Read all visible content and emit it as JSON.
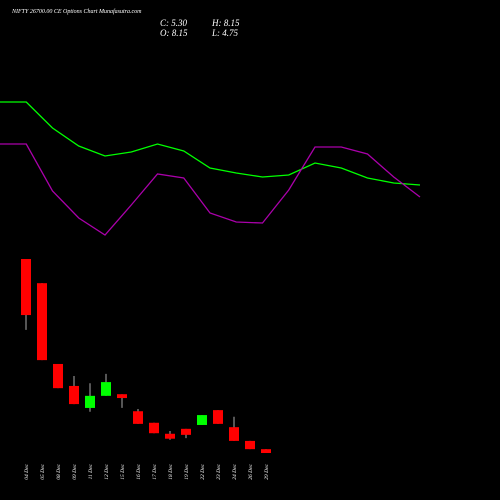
{
  "chart_data": [
    {
      "type": "candlestick",
      "title": "NIFTY 26700.00 CE Options Chart Munafasutra.com",
      "annotations": [
        "C: 5.30",
        "H: 8.15",
        "O: 8.15",
        "L: 4.75"
      ],
      "categories": [
        "04 Dec",
        "05 Dec",
        "08 Dec",
        "09 Dec",
        "11 Dec",
        "12 Dec",
        "15 Dec",
        "16 Dec",
        "17 Dec",
        "18 Dec",
        "19 Dec",
        "22 Dec",
        "23 Dec",
        "24 Dec",
        "26 Dec",
        "29 Dec"
      ],
      "open": [
        40.2,
        35.8,
        21.1,
        17.1,
        13.1,
        15.3,
        15.6,
        12.5,
        10.4,
        8.4,
        9.3,
        10.0,
        12.7,
        9.6,
        7.1,
        5.6
      ],
      "high": [
        40.2,
        35.8,
        21.1,
        18.9,
        17.6,
        19.3,
        15.6,
        12.9,
        10.4,
        8.9,
        9.3,
        11.8,
        12.7,
        11.5,
        7.1,
        5.6
      ],
      "low": [
        27.3,
        21.8,
        16.7,
        13.8,
        12.4,
        15.3,
        13.1,
        10.2,
        8.5,
        7.3,
        7.6,
        10.0,
        10.2,
        7.1,
        5.6,
        4.9
      ],
      "close": [
        30.0,
        21.8,
        16.7,
        13.8,
        15.3,
        17.8,
        14.9,
        10.2,
        8.5,
        7.5,
        8.2,
        11.8,
        10.2,
        7.1,
        5.6,
        4.9
      ],
      "up_color": "#00ff00",
      "down_color": "#ff0000"
    },
    {
      "type": "line",
      "series": [
        {
          "color": "#00ff00",
          "values": [
            198,
            198,
            172,
            154,
            144,
            148,
            156,
            149,
            132,
            127,
            123,
            125,
            137,
            132,
            122,
            117,
            115
          ]
        },
        {
          "color": "#aa00aa",
          "values": [
            156,
            156,
            109,
            82,
            65,
            95,
            126,
            122,
            87,
            78,
            77,
            110,
            153,
            153,
            146,
            123,
            103
          ]
        }
      ]
    }
  ]
}
